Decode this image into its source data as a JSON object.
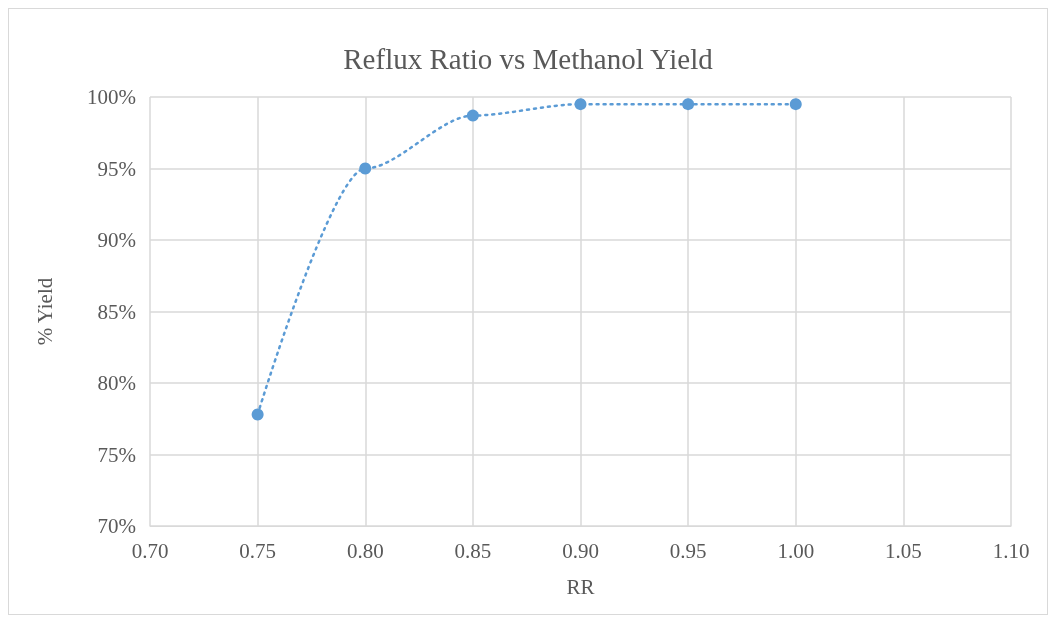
{
  "chart_data": {
    "type": "line",
    "title": "Reflux Ratio vs Methanol Yield",
    "xlabel": "RR",
    "ylabel": "% Yield",
    "x": [
      0.75,
      0.8,
      0.85,
      0.9,
      0.95,
      1.0
    ],
    "series": [
      {
        "color": "#5b9bd5",
        "values": [
          77.8,
          95.0,
          98.7,
          99.5,
          99.5,
          99.5
        ]
      }
    ],
    "xlim": [
      0.7,
      1.1
    ],
    "xticks": [
      {
        "value": 0.7,
        "label": "0.70"
      },
      {
        "value": 0.75,
        "label": "0.75"
      },
      {
        "value": 0.8,
        "label": "0.80"
      },
      {
        "value": 0.85,
        "label": "0.85"
      },
      {
        "value": 0.9,
        "label": "0.90"
      },
      {
        "value": 0.95,
        "label": "0.95"
      },
      {
        "value": 1.0,
        "label": "1.00"
      },
      {
        "value": 1.05,
        "label": "1.05"
      },
      {
        "value": 1.1,
        "label": "1.10"
      }
    ],
    "ylim": [
      70,
      100
    ],
    "yticks": [
      {
        "value": 70,
        "label": "70%"
      },
      {
        "value": 75,
        "label": "75%"
      },
      {
        "value": 80,
        "label": "80%"
      },
      {
        "value": 85,
        "label": "85%"
      },
      {
        "value": 90,
        "label": "90%"
      },
      {
        "value": 95,
        "label": "95%"
      },
      {
        "value": 100,
        "label": "100%"
      }
    ],
    "grid": true,
    "marker": "circle",
    "line_style": "dotted"
  }
}
